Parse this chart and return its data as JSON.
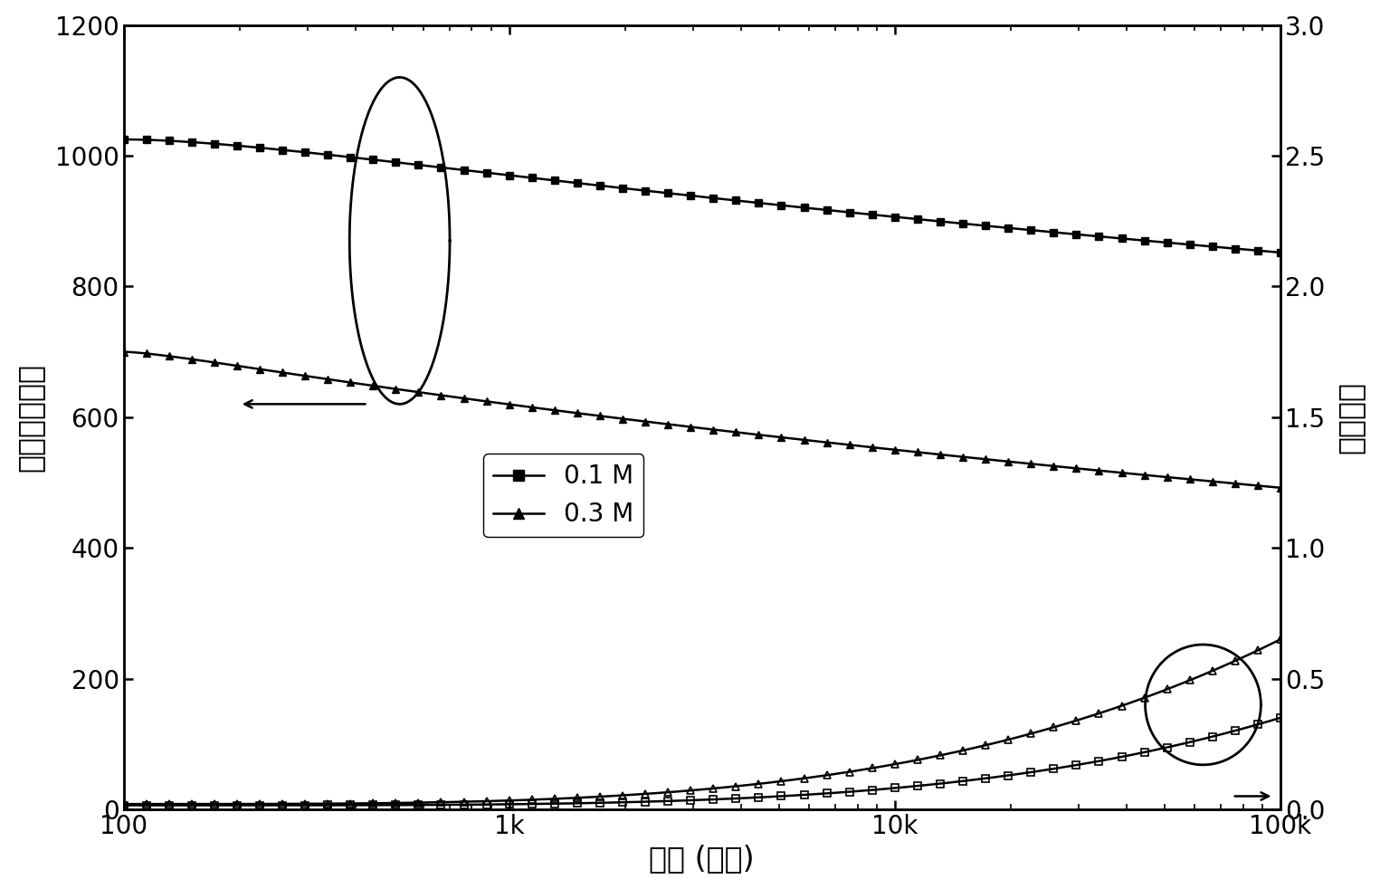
{
  "xlabel": "频率 (赫兹)",
  "ylabel_left": "相对介电常数",
  "ylabel_right": "介电损耗",
  "xlim": [
    100,
    100000
  ],
  "ylim_left": [
    0,
    1200
  ],
  "ylim_right": [
    0.0,
    3.0
  ],
  "yticks_left": [
    0,
    200,
    400,
    600,
    800,
    1000,
    1200
  ],
  "yticks_right": [
    0.0,
    0.5,
    1.0,
    1.5,
    2.0,
    2.5,
    3.0
  ],
  "xticklabels": [
    "100",
    "1k",
    "10k",
    "100k"
  ],
  "legend_labels": [
    "0.1 M",
    "0.3 M"
  ],
  "fontsize_label": 24,
  "fontsize_tick": 20,
  "fontsize_legend": 20
}
